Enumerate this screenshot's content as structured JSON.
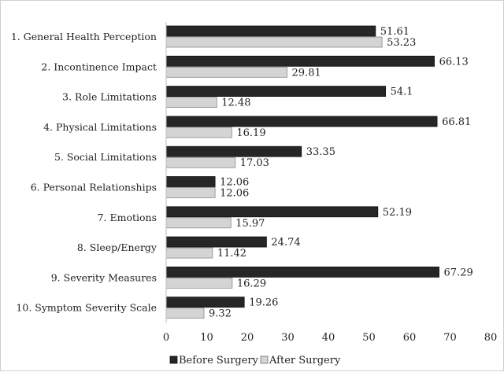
{
  "chart_data": {
    "type": "bar",
    "orientation": "horizontal",
    "categories": [
      "1. General Health Perception",
      "2. Incontinence Impact",
      "3. Role Limitations",
      "4. Physical Limitations",
      "5. Social Limitations",
      "6. Personal Relationships",
      "7. Emotions",
      "8. Sleep/Energy",
      "9. Severity Measures",
      "10. Symptom Severity Scale"
    ],
    "series": [
      {
        "name": "Before Surgery",
        "color": "#262626",
        "values": [
          51.61,
          66.13,
          54.1,
          66.81,
          33.35,
          12.06,
          52.19,
          24.74,
          67.29,
          19.26
        ]
      },
      {
        "name": "After Surgery",
        "color": "#d4d4d4",
        "values": [
          53.23,
          29.81,
          12.48,
          16.19,
          17.03,
          12.06,
          15.97,
          11.42,
          16.29,
          9.32
        ]
      }
    ],
    "xlim": [
      0,
      80
    ],
    "xticks": [
      0,
      10,
      20,
      30,
      40,
      50,
      60,
      70,
      80
    ],
    "data_labels": true,
    "grid": false,
    "legend_position": "bottom"
  }
}
